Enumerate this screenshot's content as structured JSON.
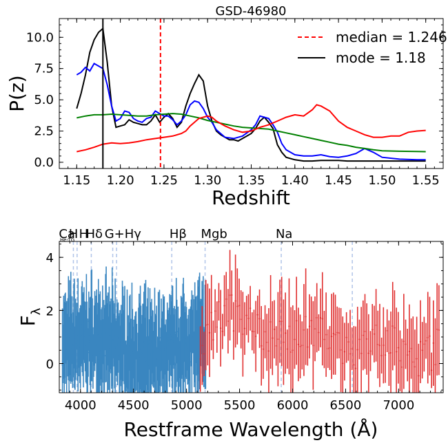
{
  "chart_data": [
    {
      "type": "line",
      "title": "GSD-46980",
      "xlabel": "Redshift",
      "ylabel": "P(z)",
      "xlim": [
        1.13,
        1.57
      ],
      "ylim": [
        -0.5,
        11.5
      ],
      "xticks": [
        "1.15",
        "1.20",
        "1.25",
        "1.30",
        "1.35",
        "1.40",
        "1.45",
        "1.50",
        "1.55"
      ],
      "xtick_values": [
        1.15,
        1.2,
        1.25,
        1.3,
        1.35,
        1.4,
        1.45,
        1.5,
        1.55
      ],
      "yticks": [
        "0.0",
        "2.5",
        "5.0",
        "7.5",
        "10.0"
      ],
      "ytick_values": [
        0.0,
        2.5,
        5.0,
        7.5,
        10.0
      ],
      "grid": false,
      "legend": "top-right",
      "legend_entries": [
        {
          "label": "median = 1.246",
          "color": "#ff0000",
          "style": "dashed"
        },
        {
          "label": "mode = 1.18",
          "color": "#000000",
          "style": "solid"
        }
      ],
      "vlines": [
        {
          "x": 1.246,
          "color": "#ff0000",
          "style": "dashed"
        },
        {
          "x": 1.18,
          "color": "#000000",
          "style": "solid"
        }
      ],
      "series": [
        {
          "color": "#000000",
          "x": [
            1.15,
            1.155,
            1.16,
            1.165,
            1.17,
            1.175,
            1.18,
            1.185,
            1.19,
            1.195,
            1.2,
            1.205,
            1.21,
            1.215,
            1.22,
            1.225,
            1.23,
            1.235,
            1.24,
            1.245,
            1.25,
            1.255,
            1.26,
            1.265,
            1.27,
            1.275,
            1.28,
            1.285,
            1.29,
            1.295,
            1.3,
            1.305,
            1.31,
            1.315,
            1.32,
            1.325,
            1.33,
            1.335,
            1.34,
            1.345,
            1.35,
            1.355,
            1.36,
            1.365,
            1.37,
            1.375,
            1.38,
            1.385,
            1.39,
            1.4,
            1.41,
            1.42,
            1.43,
            1.44,
            1.45,
            1.46,
            1.48,
            1.5,
            1.52,
            1.54,
            1.55
          ],
          "y": [
            4.3,
            5.5,
            7.0,
            8.8,
            9.8,
            10.4,
            10.7,
            8.0,
            4.5,
            2.8,
            2.9,
            3.0,
            3.4,
            3.2,
            3.1,
            3.0,
            3.0,
            3.3,
            3.8,
            3.2,
            3.6,
            3.9,
            3.5,
            2.8,
            3.2,
            4.5,
            5.5,
            6.3,
            7.0,
            6.5,
            4.5,
            3.3,
            2.5,
            2.2,
            2.0,
            1.8,
            1.8,
            1.7,
            1.9,
            2.1,
            2.3,
            2.7,
            3.3,
            3.6,
            3.2,
            2.7,
            1.4,
            0.8,
            0.4,
            0.2,
            0.1,
            0.1,
            0.15,
            0.15,
            0.15,
            0.1,
            0.1,
            0.1,
            0.1,
            0.1,
            0.1
          ]
        },
        {
          "color": "#0000ff",
          "x": [
            1.15,
            1.155,
            1.16,
            1.165,
            1.17,
            1.175,
            1.18,
            1.185,
            1.19,
            1.195,
            1.2,
            1.205,
            1.21,
            1.215,
            1.22,
            1.225,
            1.23,
            1.235,
            1.24,
            1.245,
            1.25,
            1.255,
            1.26,
            1.265,
            1.27,
            1.275,
            1.28,
            1.285,
            1.29,
            1.295,
            1.3,
            1.305,
            1.31,
            1.32,
            1.33,
            1.34,
            1.35,
            1.355,
            1.36,
            1.365,
            1.37,
            1.375,
            1.38,
            1.385,
            1.39,
            1.4,
            1.41,
            1.42,
            1.43,
            1.44,
            1.45,
            1.46,
            1.47,
            1.48,
            1.49,
            1.5,
            1.52,
            1.54,
            1.55
          ],
          "y": [
            7.0,
            7.2,
            7.6,
            7.3,
            7.9,
            7.7,
            7.5,
            6.2,
            4.5,
            3.3,
            3.5,
            4.1,
            4.0,
            3.5,
            3.3,
            3.2,
            3.5,
            3.6,
            4.1,
            3.9,
            3.7,
            3.7,
            3.4,
            3.0,
            3.3,
            3.8,
            4.6,
            4.9,
            4.8,
            4.3,
            3.6,
            3.2,
            2.6,
            2.0,
            1.9,
            2.1,
            2.6,
            3.0,
            3.7,
            3.6,
            3.5,
            3.0,
            2.4,
            1.5,
            1.0,
            0.6,
            0.5,
            0.5,
            0.6,
            0.45,
            0.4,
            0.5,
            0.7,
            1.1,
            0.8,
            0.4,
            0.25,
            0.2,
            0.2
          ]
        },
        {
          "color": "#008000",
          "x": [
            1.15,
            1.16,
            1.17,
            1.18,
            1.19,
            1.2,
            1.21,
            1.22,
            1.23,
            1.24,
            1.25,
            1.26,
            1.27,
            1.28,
            1.29,
            1.3,
            1.31,
            1.32,
            1.33,
            1.34,
            1.35,
            1.36,
            1.37,
            1.38,
            1.39,
            1.4,
            1.41,
            1.42,
            1.43,
            1.44,
            1.45,
            1.46,
            1.47,
            1.48,
            1.49,
            1.5,
            1.52,
            1.54,
            1.55
          ],
          "y": [
            3.55,
            3.7,
            3.8,
            3.8,
            3.85,
            3.8,
            3.75,
            3.7,
            3.7,
            3.8,
            3.85,
            3.9,
            3.85,
            3.7,
            3.55,
            3.35,
            3.2,
            3.05,
            2.9,
            2.8,
            2.75,
            2.7,
            2.65,
            2.5,
            2.35,
            2.2,
            2.05,
            1.9,
            1.75,
            1.6,
            1.45,
            1.35,
            1.2,
            1.1,
            1.0,
            0.92,
            0.88,
            0.86,
            0.85
          ]
        },
        {
          "color": "#ff0000",
          "x": [
            1.15,
            1.16,
            1.17,
            1.18,
            1.19,
            1.2,
            1.21,
            1.22,
            1.23,
            1.24,
            1.25,
            1.26,
            1.27,
            1.275,
            1.28,
            1.285,
            1.29,
            1.295,
            1.3,
            1.305,
            1.31,
            1.32,
            1.33,
            1.34,
            1.35,
            1.36,
            1.37,
            1.38,
            1.39,
            1.4,
            1.41,
            1.42,
            1.425,
            1.43,
            1.44,
            1.45,
            1.46,
            1.47,
            1.48,
            1.49,
            1.5,
            1.51,
            1.52,
            1.53,
            1.54,
            1.55
          ],
          "y": [
            0.85,
            1.0,
            1.2,
            1.45,
            1.55,
            1.5,
            1.55,
            1.65,
            1.8,
            1.9,
            2.0,
            2.1,
            2.3,
            2.5,
            2.9,
            3.2,
            3.5,
            3.6,
            3.7,
            3.6,
            3.3,
            2.9,
            2.6,
            2.4,
            2.5,
            2.8,
            3.0,
            3.3,
            3.6,
            3.8,
            3.7,
            4.2,
            4.6,
            4.5,
            4.1,
            3.3,
            2.8,
            2.5,
            2.2,
            2.0,
            2.0,
            2.1,
            2.1,
            2.4,
            2.5,
            2.55
          ]
        }
      ]
    },
    {
      "type": "scatter",
      "xlabel": "Restframe Wavelength (Å)",
      "ylabel": "F",
      "ylabel_sub": "λ",
      "xlim": [
        3800,
        7420
      ],
      "ylim": [
        -1.1,
        4.6
      ],
      "xticks": [
        "4000",
        "4500",
        "5000",
        "5500",
        "6000",
        "6500",
        "7000"
      ],
      "xtick_values": [
        4000,
        4500,
        5000,
        5500,
        6000,
        6500,
        7000
      ],
      "yticks": [
        "0",
        "2",
        "4"
      ],
      "ytick_values": [
        0,
        2,
        4
      ],
      "grid": false,
      "line_markers": [
        {
          "label": "Ca H",
          "x": 3968,
          "label_x": 3935
        },
        {
          "label": "H",
          "x": 3933
        },
        {
          "label": "Hδ",
          "x": 4102,
          "label_x": 4130
        },
        {
          "label": "G+Hγ",
          "x": 4340,
          "label_x": 4400
        },
        {
          "label": "Hβ",
          "x": 4861,
          "label_x": 4920
        },
        {
          "label": "Mgb",
          "x": 5175,
          "label_x": 5260
        },
        {
          "label": "Na",
          "x": 5893,
          "label_x": 5920
        },
        {
          "x": 4304
        },
        {
          "x": 6563
        }
      ],
      "annotation_small": "He-TG",
      "series": [
        {
          "color": "#3a86c0",
          "x_start": 3830,
          "x_end": 5180,
          "n": 240,
          "err_amp": 1.6,
          "seed": 7
        },
        {
          "color": "#e03030",
          "x_start": 5130,
          "x_end": 7380,
          "n": 130,
          "err_amp": 1.3,
          "seed": 19
        }
      ]
    }
  ]
}
